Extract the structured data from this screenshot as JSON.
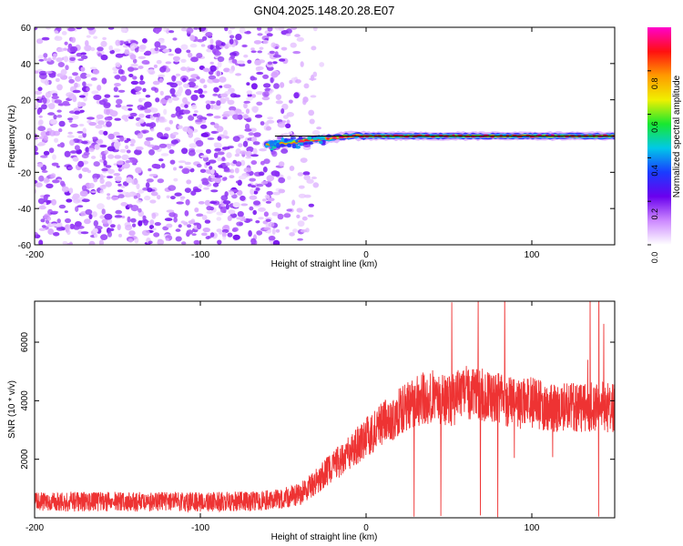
{
  "title": "GN04.2025.148.20.28.E07",
  "chart_data": [
    {
      "type": "heatmap",
      "xlabel": "Height of straight line (km)",
      "ylabel": "Frequency (Hz)",
      "xlim": [
        -200,
        150
      ],
      "ylim": [
        -60,
        60
      ],
      "xticks": [
        -200,
        -100,
        0,
        100
      ],
      "yticks": [
        -60,
        -40,
        -20,
        0,
        20,
        40,
        60
      ],
      "colorbar": {
        "label": "Normalized spectral amplitude",
        "range": [
          0,
          1
        ],
        "ticks": [
          0.0,
          0.2,
          0.4,
          0.6,
          0.8
        ],
        "tick_labels": [
          "0.0",
          "0.2",
          "0.4",
          "0.6",
          "0.8"
        ],
        "colors": [
          "#ffffff",
          "#cc88ff",
          "#6a00ee",
          "#1a3cff",
          "#00c8e8",
          "#18e830",
          "#f0f000",
          "#ff9a00",
          "#ff1010",
          "#ff00cc"
        ]
      },
      "noise_region": {
        "x_range": [
          -200,
          -35
        ],
        "amplitude": 0.15
      },
      "signal_band": {
        "x_range": [
          -60,
          150
        ],
        "frequency_hz": 0
      },
      "signal_frequency": {
        "x": [
          -60,
          -50,
          -40,
          -30,
          -20,
          -10,
          0,
          50,
          100,
          150
        ],
        "y": [
          -5,
          -4,
          -3,
          -2,
          -1,
          0,
          0,
          0,
          0,
          0
        ]
      },
      "line_color": "#000000"
    },
    {
      "type": "line",
      "xlabel": "Height of straight line (km)",
      "ylabel": "SNR (10 * v/v)",
      "xlim": [
        -200,
        150
      ],
      "ylim": [
        0,
        7400
      ],
      "xticks": [
        -200,
        -100,
        0,
        100
      ],
      "yticks": [
        2000,
        4000,
        6000
      ],
      "series": [
        {
          "color": "#ee3333",
          "x": [
            -200,
            -150,
            -100,
            -70,
            -55,
            -40,
            -30,
            -20,
            -10,
            0,
            10,
            20,
            30,
            40,
            50,
            60,
            70,
            80,
            90,
            100,
            110,
            120,
            130,
            140,
            150
          ],
          "y": [
            550,
            550,
            550,
            560,
            620,
            800,
            1250,
            1750,
            2200,
            2750,
            3200,
            3600,
            4000,
            4150,
            3950,
            4300,
            4200,
            4150,
            3900,
            3950,
            3800,
            3750,
            3750,
            3800,
            3750
          ]
        }
      ]
    }
  ]
}
